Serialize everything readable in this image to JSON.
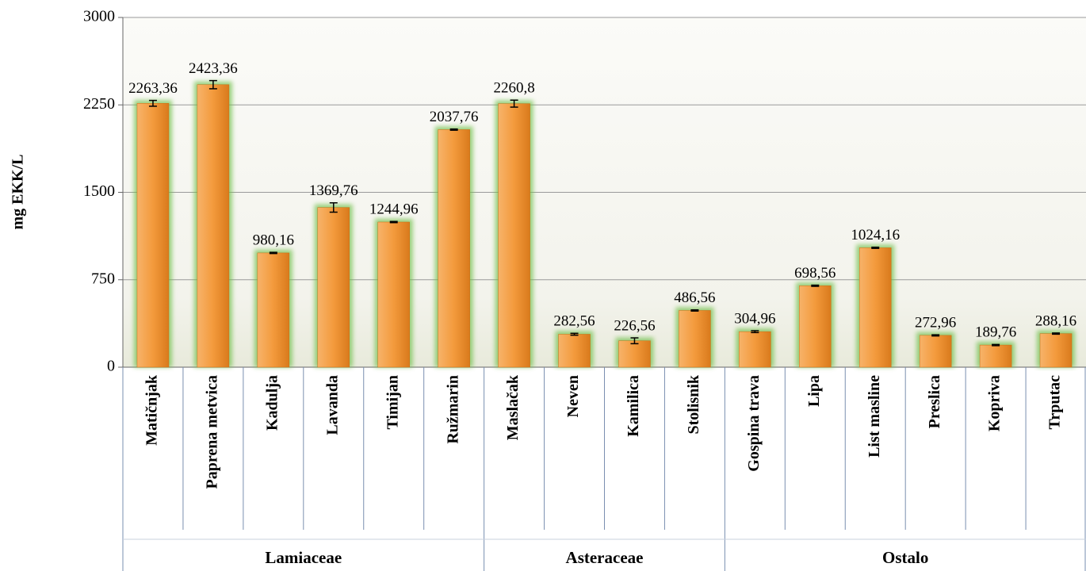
{
  "chart_data": {
    "type": "bar",
    "y_label": "mg EKK/L",
    "categories": [
      "Matičnjak",
      "Paprena metvica",
      "Kadulja",
      "Lavanda",
      "Timijan",
      "Ružmarin",
      "Maslačak",
      "Neven",
      "Kamilica",
      "Stolisnik",
      "Gospina trava",
      "Lipa",
      "List masline",
      "Preslica",
      "Kopriva",
      "Trputac"
    ],
    "category_groups": [
      "Lamiaceae",
      "Lamiaceae",
      "Lamiaceae",
      "Lamiaceae",
      "Lamiaceae",
      "Lamiaceae",
      "Asteraceae",
      "Asteraceae",
      "Asteraceae",
      "Asteraceae",
      "Ostalo",
      "Ostalo",
      "Ostalo",
      "Ostalo",
      "Ostalo",
      "Ostalo"
    ],
    "values": [
      2263.36,
      2423.36,
      980.16,
      1369.76,
      1244.96,
      2037.76,
      2260.8,
      282.56,
      226.56,
      486.56,
      304.96,
      698.56,
      1024.16,
      272.96,
      189.76,
      288.16
    ],
    "value_labels": [
      "2263,36",
      "2423,36",
      "980,16",
      "1369,76",
      "1244,96",
      "2037,76",
      "2260,8",
      "282,56",
      "226,56",
      "486,56",
      "304,96",
      "698,56",
      "1024,16",
      "272,96",
      "189,76",
      "288,16"
    ],
    "errors": [
      25,
      35,
      5,
      40,
      5,
      5,
      30,
      8,
      25,
      5,
      8,
      5,
      5,
      5,
      5,
      5
    ],
    "color": "#f39a3c",
    "ylim": [
      0,
      3000
    ],
    "yticks": [
      0,
      750,
      1500,
      2250,
      3000
    ],
    "grid": true
  }
}
